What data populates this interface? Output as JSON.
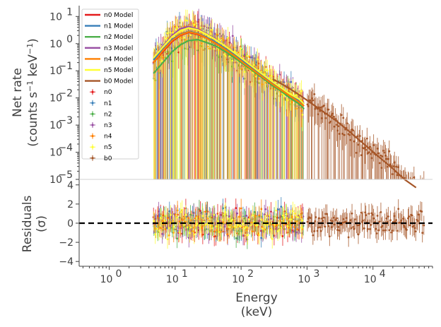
{
  "chart_data": [
    {
      "type": "scatter",
      "panel": "spectrum",
      "ylabel": "Net rate",
      "ylabel_line2": "(counts s",
      "ylabel_unit_exp1": "−1",
      "ylabel_unit_mid": " keV",
      "ylabel_unit_end": ")",
      "xscale": "log",
      "yscale": "log",
      "xlim": [
        0.35,
        80000
      ],
      "ylim": [
        1e-05,
        25
      ],
      "ytick_exps": [
        -5,
        -4,
        -3,
        -2,
        -1,
        0,
        1
      ],
      "legend_position": "top-left",
      "series": [
        {
          "name": "n0",
          "model_name": "n0 Model",
          "color": "#e41a1c",
          "x": [
            4.7,
            6.5,
            9,
            12,
            16,
            22,
            30,
            42,
            58,
            80,
            110,
            150,
            210,
            290,
            400,
            550,
            760,
            900
          ],
          "y": [
            0.2,
            0.5,
            1.2,
            2.0,
            2.6,
            2.2,
            1.6,
            1.0,
            0.6,
            0.35,
            0.2,
            0.11,
            0.06,
            0.035,
            0.02,
            0.012,
            0.007,
            0.005
          ]
        },
        {
          "name": "n1",
          "model_name": "n1 Model",
          "color": "#377eb8",
          "x": [
            4.7,
            6.5,
            9,
            12,
            16,
            22,
            30,
            42,
            58,
            80,
            110,
            150,
            210,
            290,
            400,
            550,
            760,
            900
          ],
          "y": [
            0.25,
            0.6,
            1.4,
            2.2,
            2.8,
            2.4,
            1.7,
            1.1,
            0.65,
            0.38,
            0.21,
            0.12,
            0.065,
            0.038,
            0.022,
            0.013,
            0.008,
            0.006
          ]
        },
        {
          "name": "n2",
          "model_name": "n2 Model",
          "color": "#4daf4a",
          "x": [
            4.7,
            6.5,
            9,
            12,
            16,
            22,
            30,
            42,
            58,
            80,
            110,
            150,
            210,
            290,
            400,
            550,
            760,
            900
          ],
          "y": [
            0.08,
            0.2,
            0.5,
            0.9,
            1.3,
            1.4,
            1.1,
            0.8,
            0.5,
            0.3,
            0.17,
            0.1,
            0.055,
            0.03,
            0.018,
            0.01,
            0.006,
            0.004
          ]
        },
        {
          "name": "n3",
          "model_name": "n3 Model",
          "color": "#984ea3",
          "x": [
            4.7,
            6.5,
            9,
            12,
            16,
            22,
            30,
            42,
            58,
            80,
            110,
            150,
            210,
            290,
            400,
            550,
            760,
            900
          ],
          "y": [
            0.3,
            0.8,
            2.0,
            3.5,
            4.2,
            3.4,
            2.3,
            1.4,
            0.8,
            0.45,
            0.25,
            0.14,
            0.075,
            0.042,
            0.024,
            0.014,
            0.009,
            0.006
          ]
        },
        {
          "name": "n4",
          "model_name": "n4 Model",
          "color": "#ff7f00",
          "x": [
            4.7,
            6.5,
            9,
            12,
            16,
            22,
            30,
            42,
            58,
            80,
            110,
            150,
            210,
            290,
            400,
            550,
            760,
            900
          ],
          "y": [
            0.2,
            0.55,
            1.3,
            2.1,
            2.7,
            2.3,
            1.6,
            1.0,
            0.6,
            0.35,
            0.19,
            0.11,
            0.06,
            0.034,
            0.02,
            0.012,
            0.007,
            0.005
          ]
        },
        {
          "name": "n5",
          "model_name": "n5 Model",
          "color": "#ffff33",
          "x": [
            4.7,
            6.5,
            9,
            12,
            16,
            22,
            30,
            42,
            58,
            80,
            110,
            150,
            210,
            290,
            400,
            550,
            760,
            900
          ],
          "y": [
            0.3,
            0.75,
            1.8,
            3.0,
            3.8,
            3.2,
            2.2,
            1.35,
            0.8,
            0.45,
            0.25,
            0.14,
            0.075,
            0.042,
            0.024,
            0.014,
            0.009,
            0.006
          ]
        },
        {
          "name": "b0",
          "model_name": "b0 Model",
          "color": "#a65628",
          "x": [
            300,
            500,
            800,
            1200,
            1800,
            2700,
            4000,
            6000,
            9000,
            13000,
            20000,
            30000,
            45000
          ],
          "y": [
            0.05,
            0.025,
            0.012,
            0.006,
            0.003,
            0.0015,
            0.0007,
            0.0003,
            0.00013,
            6e-05,
            2.5e-05,
            1e-05,
            5e-06
          ]
        }
      ]
    },
    {
      "type": "scatter",
      "panel": "residuals",
      "xlabel": "Energy",
      "xlabel_line2": "(keV)",
      "ylabel": "Residuals",
      "ylabel_line2": "(σ)",
      "xscale": "log",
      "xlim": [
        0.35,
        80000
      ],
      "ylim": [
        -4.5,
        4.5
      ],
      "yticks": [
        -4,
        -2,
        0,
        2,
        4
      ],
      "xtick_exps": [
        0,
        1,
        2,
        3,
        4
      ],
      "zero_line_color": "#000000"
    }
  ]
}
